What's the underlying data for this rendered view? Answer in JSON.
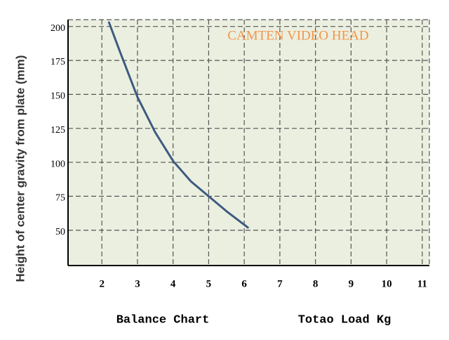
{
  "chart_data": {
    "type": "line",
    "y_label": "Height of center gravity from plate (mm)",
    "annotation": "CAMTEN VIDEO HEAD",
    "x_title_left": "Balance Chart",
    "x_title_right": "Totao Load Kg",
    "x": [
      2.2,
      2.5,
      3,
      3.5,
      4,
      4.5,
      5,
      5.5,
      6.1
    ],
    "series": [
      {
        "color": "#3d5a80",
        "values": [
          203,
          182,
          148,
          122,
          101,
          86,
          75,
          64,
          52
        ]
      }
    ],
    "xlim": [
      1.05,
      11.2
    ],
    "ylim": [
      24,
      205
    ],
    "xticks": [
      2,
      3,
      4,
      5,
      6,
      7,
      8,
      9,
      10,
      11
    ],
    "yticks": [
      50,
      75,
      100,
      125,
      150,
      175,
      200
    ],
    "grid": true,
    "background": "#ebefdf",
    "annotation_color": "#f5944a"
  }
}
